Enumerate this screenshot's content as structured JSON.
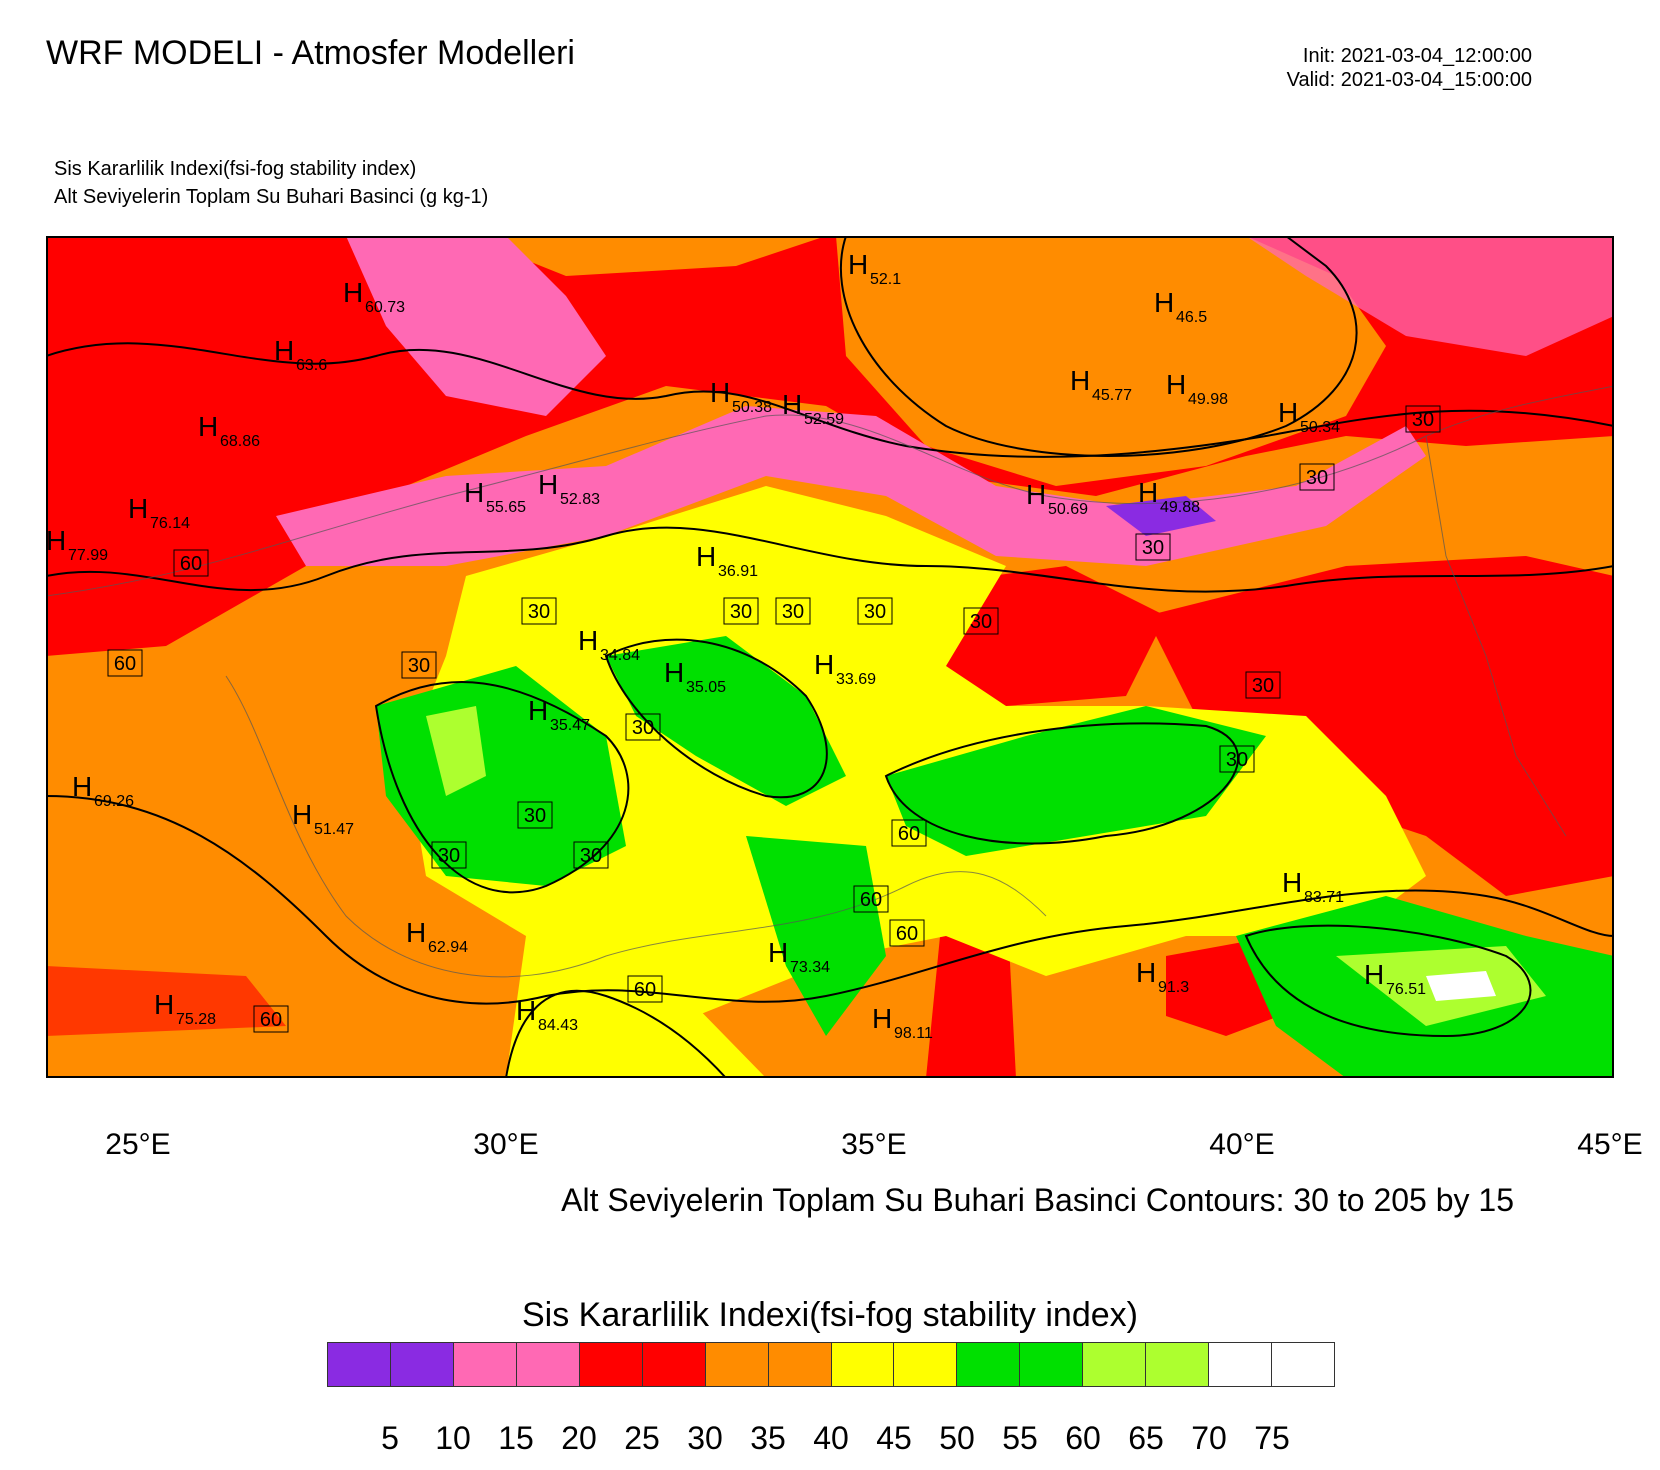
{
  "header": {
    "title": "WRF MODELI - Atmosfer Modelleri",
    "init": "Init: 2021-03-04_12:00:00",
    "valid": "Valid: 2021-03-04_15:00:00",
    "subtitle_line1": "Sis Kararlilik Indexi(fsi-fog stability index)",
    "subtitle_line2": "Alt Seviyelerin Toplam Su Buhari Basinci   (g kg-1)"
  },
  "map": {
    "lon_labels": [
      "25°E",
      "30°E",
      "35°E",
      "40°E",
      "45°E"
    ],
    "contour_note": "Alt Seviyelerin Toplam Su Buhari Basinci Contours: 30 to 205 by 15",
    "highs": [
      {
        "label": "H",
        "value": "60.73"
      },
      {
        "label": "H",
        "value": "52.1"
      },
      {
        "label": "H",
        "value": "46.5"
      },
      {
        "label": "H",
        "value": "63.6"
      },
      {
        "label": "H",
        "value": "45.77"
      },
      {
        "label": "H",
        "value": "49.98"
      },
      {
        "label": "H",
        "value": "50.38"
      },
      {
        "label": "H",
        "value": "52.59"
      },
      {
        "label": "H",
        "value": "50.34"
      },
      {
        "label": "H",
        "value": "68.86"
      },
      {
        "label": "H",
        "value": "55.65"
      },
      {
        "label": "H",
        "value": "52.83"
      },
      {
        "label": "H",
        "value": "50.69"
      },
      {
        "label": "H",
        "value": "49.88"
      },
      {
        "label": "H",
        "value": "76.14"
      },
      {
        "label": "H",
        "value": "77.99"
      },
      {
        "label": "H",
        "value": "36.91"
      },
      {
        "label": "H",
        "value": "34.84"
      },
      {
        "label": "H",
        "value": "35.05"
      },
      {
        "label": "H",
        "value": "33.69"
      },
      {
        "label": "H",
        "value": "35.47"
      },
      {
        "label": "H",
        "value": "69.26"
      },
      {
        "label": "H",
        "value": "51.47"
      },
      {
        "label": "H",
        "value": "83.71"
      },
      {
        "label": "H",
        "value": "62.94"
      },
      {
        "label": "H",
        "value": "73.34"
      },
      {
        "label": "H",
        "value": "91.3"
      },
      {
        "label": "H",
        "value": "76.51"
      },
      {
        "label": "H",
        "value": "75.28"
      },
      {
        "label": "H",
        "value": "84.43"
      },
      {
        "label": "H",
        "value": "98.11"
      }
    ],
    "contour_labels": [
      "30",
      "30",
      "30",
      "60",
      "30",
      "30",
      "30",
      "30",
      "30",
      "30",
      "60",
      "30",
      "30",
      "30",
      "60",
      "30",
      "30",
      "30",
      "60",
      "60",
      "60",
      "60"
    ]
  },
  "colorbar": {
    "title": "Sis Kararlilik Indexi(fsi-fog stability index)",
    "colors": [
      "#8a2be2",
      "#8a2be2",
      "#ff69b4",
      "#ff69b4",
      "#ff0000",
      "#ff0000",
      "#ff8c00",
      "#ff8c00",
      "#ffff00",
      "#ffff00",
      "#00e000",
      "#00e000",
      "#adff2f",
      "#adff2f",
      "#ffffff",
      "#ffffff"
    ],
    "labels": [
      "5",
      "10",
      "15",
      "20",
      "25",
      "30",
      "35",
      "40",
      "45",
      "50",
      "55",
      "60",
      "65",
      "70",
      "75"
    ]
  },
  "field_colors": {
    "red": "#ff0000",
    "orange": "#ff8c00",
    "pink": "#ff69b4",
    "purple": "#8a2be2",
    "yellow": "#ffff00",
    "green": "#00e000",
    "lightgreen": "#adff2f",
    "white": "#ffffff"
  }
}
